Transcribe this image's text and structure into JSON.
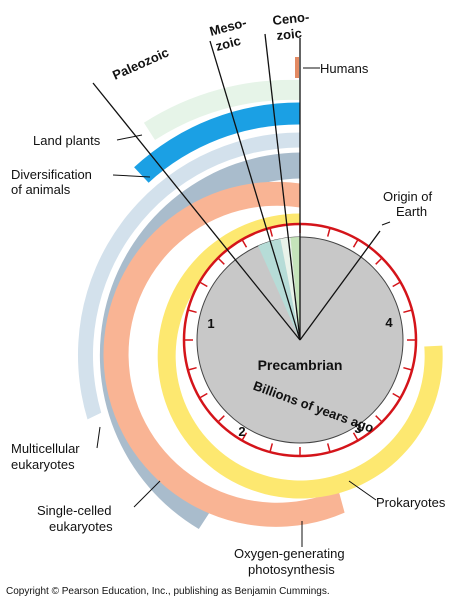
{
  "eras": {
    "paleozoic": "Paleozoic",
    "mesozoic_1": "Meso-",
    "mesozoic_2": "zoic",
    "cenozoic_1": "Ceno-",
    "cenozoic_2": "zoic"
  },
  "labels": {
    "humans": "Humans",
    "land_plants": "Land plants",
    "diversification_1": "Diversification",
    "diversification_2": "of animals",
    "origin_1": "Origin of",
    "origin_2": "Earth",
    "multicellular_1": "Multicellular",
    "multicellular_2": "eukaryotes",
    "single_celled_1": "Single-celled",
    "single_celled_2": "eukaryotes",
    "prokaryotes": "Prokaryotes",
    "oxygen_1": "Oxygen-generating",
    "oxygen_2": "photosynthesis"
  },
  "center": {
    "title": "Precambrian",
    "subtitle": "Billions of years ago"
  },
  "clock_numbers": [
    "1",
    "2",
    "3",
    "4"
  ],
  "copyright": "Copyright © Pearson Education, Inc., publishing as Benjamin Cummings.",
  "colors": {
    "clock_ring": "#d4141a",
    "clock_face": "#c8c8c8",
    "prokaryotes": "#fde870",
    "oxygen": "#f9b494",
    "single_celled": "#a9bccc",
    "multicellular": "#d3e1ec",
    "animals": "#1ba0e4",
    "land_plants": "#e6f4e8",
    "paleozoic_wedge": "#b6dcd7",
    "mesozoic_wedge": "#e9f3ea",
    "cenozoic_wedge": "#c5e4ba",
    "humans": "#e38a63"
  }
}
